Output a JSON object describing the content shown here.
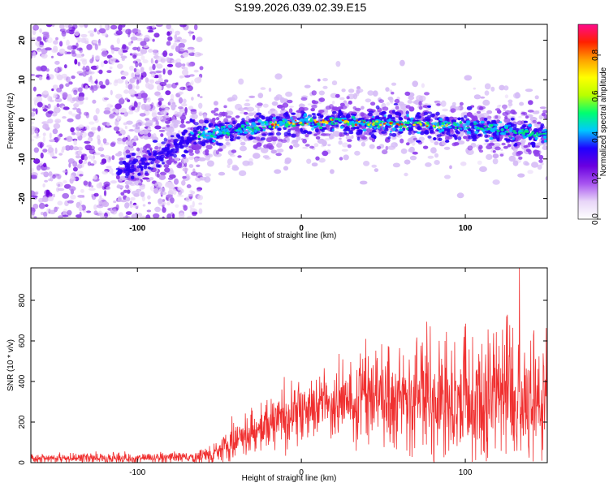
{
  "title": "S199.2026.039.02.39.E15",
  "chart_data": [
    {
      "type": "heatmap",
      "name": "spectrogram",
      "xlabel": "Height of straight line (km)",
      "ylabel": "Frequency (Hz)",
      "xlim": [
        -165,
        150
      ],
      "ylim": [
        -25,
        24
      ],
      "x_ticks": [
        -100,
        0,
        100
      ],
      "x_tick_labels": [
        "-100",
        "0",
        "100"
      ],
      "y_ticks": [
        -20,
        -10,
        0,
        10,
        20
      ],
      "y_tick_labels": [
        "-20",
        "-10",
        "0",
        "10",
        "20"
      ],
      "ridge": [
        {
          "x": -110,
          "y": -13
        },
        {
          "x": -80,
          "y": -8
        },
        {
          "x": -66,
          "y": -4
        },
        {
          "x": -40,
          "y": -3
        },
        {
          "x": -25,
          "y": -1.5
        },
        {
          "x": -10,
          "y": -1
        },
        {
          "x": 20,
          "y": -0.5
        },
        {
          "x": 50,
          "y": -1
        },
        {
          "x": 80,
          "y": -1.5
        },
        {
          "x": 110,
          "y": -2
        },
        {
          "x": 150,
          "y": -4
        }
      ],
      "noise_region_x": [
        -165,
        -65
      ],
      "colorbar": {
        "label": "Normalized spectral amplitude",
        "range": [
          0,
          0.95
        ],
        "ticks": [
          0.0,
          0.2,
          0.4,
          0.6,
          0.8
        ],
        "tick_labels": [
          "0.0",
          "0.2",
          "0.4",
          "0.6",
          "0.8"
        ],
        "colors": [
          "#ffffff",
          "#e8d6f8",
          "#a855f0",
          "#6a00e0",
          "#1f00ff",
          "#00c8ff",
          "#00ff70",
          "#b8ff00",
          "#ffff00",
          "#ffa000",
          "#ff2000",
          "#ff0a8c"
        ]
      }
    },
    {
      "type": "line",
      "name": "snr",
      "xlabel": "Height of straight line (km)",
      "ylabel": "SNR (10 * v/v)",
      "xlim": [
        -165,
        150
      ],
      "ylim": [
        0,
        960
      ],
      "x_ticks": [
        -100,
        0,
        100
      ],
      "x_tick_labels": [
        "-100",
        "0",
        "100"
      ],
      "y_ticks": [
        0,
        200,
        400,
        600,
        800
      ],
      "y_tick_labels": [
        "0",
        "200",
        "400",
        "600",
        "800"
      ],
      "color": "#f03030",
      "trend": [
        {
          "x": -165,
          "y": 20
        },
        {
          "x": -65,
          "y": 25
        },
        {
          "x": -50,
          "y": 60
        },
        {
          "x": -30,
          "y": 140
        },
        {
          "x": -20,
          "y": 200
        },
        {
          "x": 0,
          "y": 240
        },
        {
          "x": 20,
          "y": 290
        },
        {
          "x": 40,
          "y": 340
        },
        {
          "x": 60,
          "y": 340
        },
        {
          "x": 80,
          "y": 330
        },
        {
          "x": 100,
          "y": 320
        },
        {
          "x": 120,
          "y": 330
        },
        {
          "x": 150,
          "y": 310
        }
      ],
      "spread": [
        {
          "x": -165,
          "y": 12
        },
        {
          "x": -65,
          "y": 14
        },
        {
          "x": -40,
          "y": 50
        },
        {
          "x": -20,
          "y": 70
        },
        {
          "x": 0,
          "y": 80
        },
        {
          "x": 40,
          "y": 100
        },
        {
          "x": 80,
          "y": 130
        },
        {
          "x": 110,
          "y": 180
        },
        {
          "x": 150,
          "y": 170
        }
      ],
      "peak": {
        "x": 133,
        "y": 958
      }
    }
  ]
}
